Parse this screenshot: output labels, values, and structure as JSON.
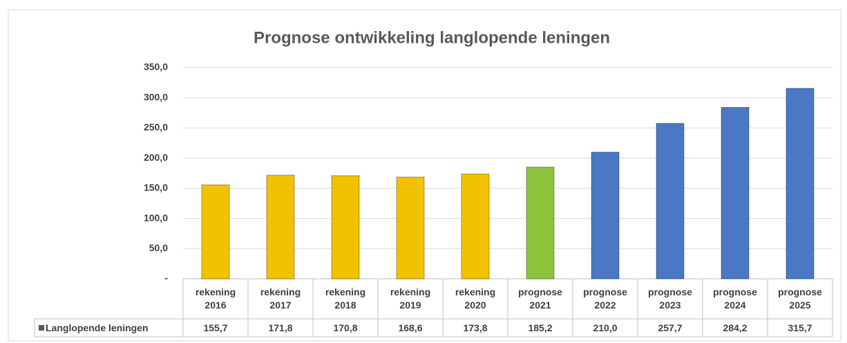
{
  "chart_data": {
    "type": "bar",
    "title": "Prognose ontwikkeling langlopende leningen",
    "categories": [
      "rekening 2016",
      "rekening 2017",
      "rekening 2018",
      "rekening 2019",
      "rekening 2020",
      "prognose 2021",
      "prognose 2022",
      "prognose 2023",
      "prognose 2024",
      "prognose 2025"
    ],
    "series": [
      {
        "name": "Langlopende leningen",
        "colors": [
          "#f2c200",
          "#f2c200",
          "#f2c200",
          "#f2c200",
          "#f2c200",
          "#8cc43c",
          "#4a78c4",
          "#4a78c4",
          "#4a78c4",
          "#4a78c4"
        ],
        "values": [
          155.7,
          171.8,
          170.8,
          168.6,
          173.8,
          185.2,
          210.0,
          257.7,
          284.2,
          315.7
        ],
        "value_labels": [
          "155,7",
          "171,8",
          "170,8",
          "168,6",
          "173,8",
          "185,2",
          "210,0",
          "257,7",
          "284,2",
          "315,7"
        ]
      }
    ],
    "ylim": [
      0,
      350
    ],
    "yticks": [
      {
        "value": 0,
        "label": "-"
      },
      {
        "value": 50,
        "label": "50,0"
      },
      {
        "value": 100,
        "label": "100,0"
      },
      {
        "value": 150,
        "label": "150,0"
      },
      {
        "value": 200,
        "label": "200,0"
      },
      {
        "value": 250,
        "label": "250,0"
      },
      {
        "value": 300,
        "label": "300,0"
      },
      {
        "value": 350,
        "label": "350,0"
      }
    ],
    "grid": true
  }
}
